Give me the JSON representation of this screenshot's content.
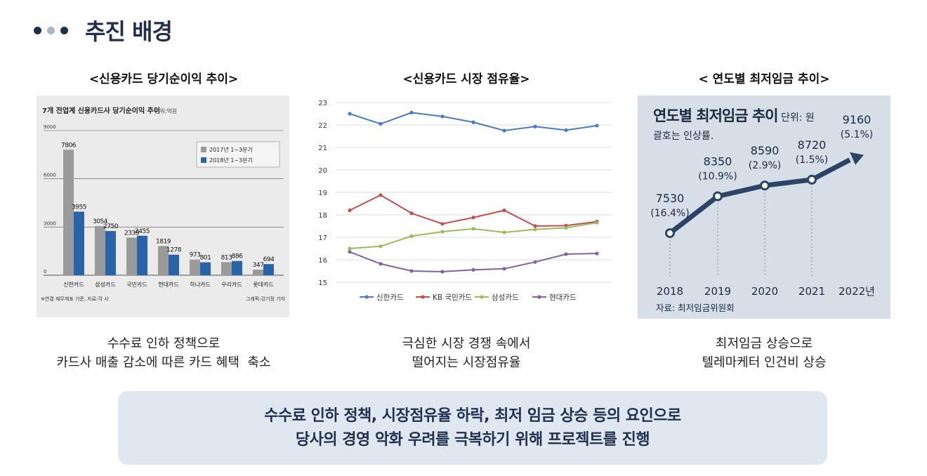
{
  "header": {
    "title": "추진 배경",
    "dot_colors": [
      "#1f2f4d",
      "#a9b4c6",
      "#1f2f4d"
    ]
  },
  "columns": [
    {
      "title": "<신용카드 당기순이익 추이>",
      "caption": [
        "수수료 인하 정책으로",
        "카드사 매출 감소에 따른 카드 혜택  축소"
      ]
    },
    {
      "title": "<신용카드 시장 점유율>",
      "caption": [
        "극심한 시장 경쟁 속에서",
        "떨어지는 시장점유율"
      ]
    },
    {
      "title": "< 연도별 최저임금 추이>",
      "caption": [
        "최저임금 상승으로",
        "텔레마케터 인건비 상승"
      ]
    }
  ],
  "summary": {
    "line1": "수수료 인하 정책, 시장점유율 하락, 최저 임금 상승 등의 요인으로",
    "line2": "당사의 경영 악화 우려를 극복하기 위해 프로젝트를 진행"
  },
  "chart_data": [
    {
      "type": "bar",
      "title": "7개 전업계 신용카드사 당기순이익 추이",
      "unit": "단위:억원",
      "categories": [
        "신한카드",
        "삼성카드",
        "국민카드",
        "현대카드",
        "하나카드",
        "우리카드",
        "롯데카드"
      ],
      "series": [
        {
          "name": "2017년 1~3분기",
          "color": "#9a9a9a",
          "values": [
            7806,
            3054,
            2339,
            1819,
            973,
            813,
            347
          ]
        },
        {
          "name": "2018년 1~3분기",
          "color": "#2a64a8",
          "values": [
            3955,
            2750,
            2455,
            1278,
            801,
            886,
            694
          ]
        }
      ],
      "yticks": [
        0,
        3000,
        6000,
        9000
      ],
      "ylim": [
        0,
        9000
      ],
      "footnote_left": "※연결 재무제표 기준, 자료:각 사",
      "footnote_right": "그래픽:강기정 기자"
    },
    {
      "type": "line",
      "x": [
        1,
        2,
        3,
        4,
        5,
        6,
        7,
        8,
        9
      ],
      "series": [
        {
          "name": "신한카드",
          "color": "#4a7bbf",
          "values": [
            22.5,
            22.05,
            22.55,
            22.38,
            22.12,
            21.75,
            21.93,
            21.77,
            21.97
          ]
        },
        {
          "name": "KB 국민카드",
          "color": "#c0504d",
          "values": [
            18.2,
            18.88,
            18.07,
            17.6,
            17.88,
            18.2,
            17.5,
            17.52,
            17.7
          ]
        },
        {
          "name": "삼성카드",
          "color": "#9bbb59",
          "values": [
            16.5,
            16.6,
            17.05,
            17.25,
            17.38,
            17.22,
            17.35,
            17.42,
            17.65
          ]
        },
        {
          "name": "현대카드",
          "color": "#8064a2",
          "values": [
            16.35,
            15.82,
            15.5,
            15.47,
            15.55,
            15.6,
            15.9,
            16.25,
            16.28
          ]
        }
      ],
      "yticks": [
        15,
        16,
        17,
        18,
        19,
        20,
        21,
        22,
        23
      ],
      "ylim": [
        15,
        23
      ]
    },
    {
      "type": "line",
      "title": "연도별 최저임금 추이",
      "unit": "단위: 원",
      "subtitle": "괄호는 인상률.",
      "categories": [
        "2018",
        "2019",
        "2020",
        "2021",
        "2022년"
      ],
      "values": [
        7530,
        8350,
        8590,
        8720,
        9160
      ],
      "value_labels": [
        "7530",
        "8350",
        "8590",
        "8720",
        "9160"
      ],
      "rates": [
        "(16.4%)",
        "(10.9%)",
        "(2.9%)",
        "(1.5%)",
        "(5.1%)"
      ],
      "source": "자료: 최저임금위원회",
      "ylim": [
        7000,
        9500
      ],
      "background": "#d6dfe8",
      "line_color": "#2c4466"
    }
  ]
}
